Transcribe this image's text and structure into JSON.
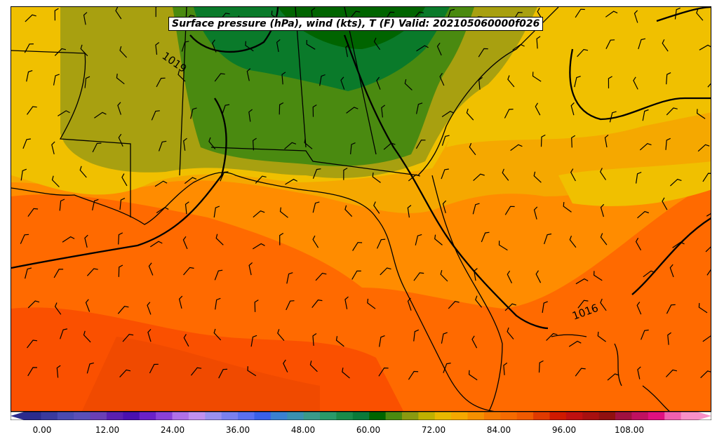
{
  "title": "Surface pressure (hPa), wind (kts), T (F) Valid: 202105060000f026",
  "isobar_labels": [
    "1019",
    "1016"
  ],
  "colorbar": {
    "tick_labels": [
      "0.00",
      "12.00",
      "24.00",
      "36.00",
      "48.00",
      "60.00",
      "72.00",
      "84.00",
      "96.00",
      "108.00"
    ],
    "colors": [
      "#2b2b8c",
      "#3a3a9e",
      "#4a4ab0",
      "#5a4fb8",
      "#6a3fb5",
      "#5a1fb0",
      "#4a10b0",
      "#6a20c8",
      "#8a40d8",
      "#b070e8",
      "#c090f0",
      "#9a90f0",
      "#7a80f0",
      "#5a70f0",
      "#3a60e8",
      "#3a80d0",
      "#3a90b0",
      "#3a9a8a",
      "#2a9a6a",
      "#1a8a4a",
      "#0a7a3a",
      "#006400",
      "#4a8a10",
      "#8a9a10",
      "#c0b000",
      "#e8b800",
      "#f5a800",
      "#f59000",
      "#f57800",
      "#f56a00",
      "#f05a00",
      "#e03a00",
      "#d01a00",
      "#c01010",
      "#a81010",
      "#901010",
      "#a01040",
      "#c01060",
      "#e01080",
      "#f060b0",
      "#f890c8"
    ]
  },
  "colors": {
    "deep_green": "#006400",
    "mid_green": "#4a8a10",
    "olive": "#a8a010",
    "yellow": "#f0c000",
    "gold": "#f5a800",
    "orange": "#ff8c00",
    "dark_orange": "#ff6a00",
    "red_orange": "#fa5000"
  }
}
